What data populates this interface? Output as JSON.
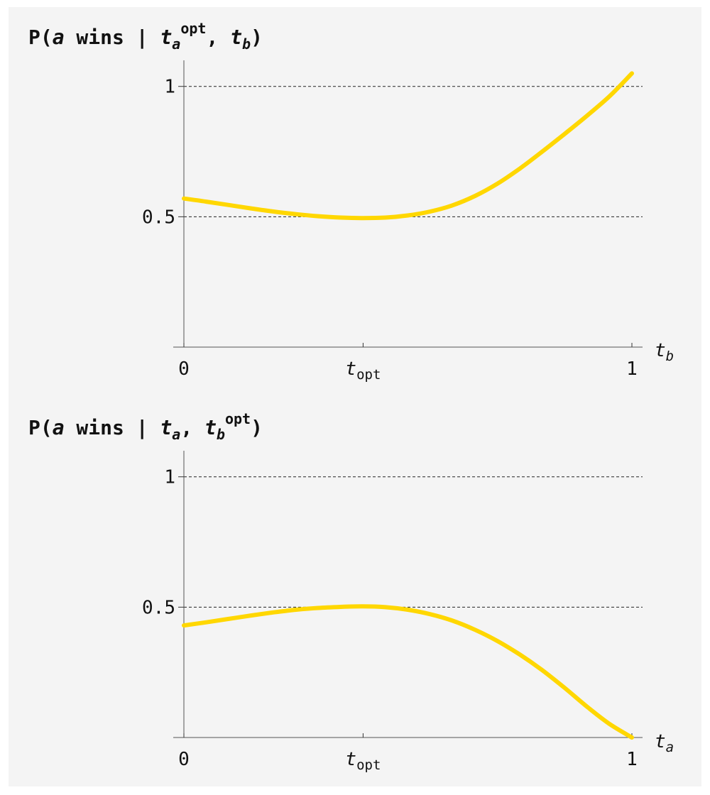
{
  "chart_data": [
    {
      "type": "line",
      "title": {
        "prefix": "P(",
        "var": "a",
        "text": " wins | ",
        "arg1_base": "t",
        "arg1_sub": "a",
        "arg1_sup": "opt",
        "sep": ", ",
        "arg2_base": "t",
        "arg2_sub": "b",
        "arg2_sup": "",
        "suffix": ")"
      },
      "xlabel": {
        "base": "t",
        "sub": "b"
      },
      "xticks": [
        {
          "value": 0,
          "base": "0",
          "sub": ""
        },
        {
          "value": 0.4,
          "base": "t",
          "sub": "opt"
        },
        {
          "value": 1,
          "base": "1",
          "sub": ""
        }
      ],
      "yticks": [
        {
          "value": 0.5,
          "label": "0.5"
        },
        {
          "value": 1,
          "label": "1"
        }
      ],
      "gridlines_y": [
        0.5,
        1
      ],
      "xlim": [
        0,
        1
      ],
      "ylim": [
        0,
        1.1
      ],
      "series": [
        {
          "color": "#FFD700",
          "x": [
            0,
            0.05,
            0.1,
            0.15,
            0.2,
            0.25,
            0.3,
            0.35,
            0.4,
            0.45,
            0.5,
            0.55,
            0.6,
            0.65,
            0.7,
            0.75,
            0.8,
            0.85,
            0.9,
            0.95,
            1.0
          ],
          "y": [
            0.57,
            0.558,
            0.545,
            0.532,
            0.52,
            0.51,
            0.502,
            0.497,
            0.495,
            0.497,
            0.505,
            0.52,
            0.544,
            0.58,
            0.627,
            0.685,
            0.75,
            0.818,
            0.888,
            0.962,
            1.05
          ]
        }
      ]
    },
    {
      "type": "line",
      "title": {
        "prefix": "P(",
        "var": "a",
        "text": " wins | ",
        "arg1_base": "t",
        "arg1_sub": "a",
        "arg1_sup": "",
        "sep": ", ",
        "arg2_base": "t",
        "arg2_sub": "b",
        "arg2_sup": "opt",
        "suffix": ")"
      },
      "xlabel": {
        "base": "t",
        "sub": "a"
      },
      "xticks": [
        {
          "value": 0,
          "base": "0",
          "sub": ""
        },
        {
          "value": 0.4,
          "base": "t",
          "sub": "opt"
        },
        {
          "value": 1,
          "base": "1",
          "sub": ""
        }
      ],
      "yticks": [
        {
          "value": 0.5,
          "label": "0.5"
        },
        {
          "value": 1,
          "label": "1"
        }
      ],
      "gridlines_y": [
        0.5,
        1
      ],
      "xlim": [
        0,
        1
      ],
      "ylim": [
        0,
        1.1
      ],
      "series": [
        {
          "color": "#FFD700",
          "x": [
            0,
            0.05,
            0.1,
            0.15,
            0.2,
            0.25,
            0.3,
            0.35,
            0.4,
            0.45,
            0.5,
            0.55,
            0.6,
            0.65,
            0.7,
            0.75,
            0.8,
            0.85,
            0.9,
            0.95,
            1.0
          ],
          "y": [
            0.43,
            0.442,
            0.455,
            0.468,
            0.48,
            0.49,
            0.497,
            0.501,
            0.503,
            0.5,
            0.49,
            0.473,
            0.448,
            0.413,
            0.37,
            0.318,
            0.258,
            0.19,
            0.118,
            0.052,
            0.0
          ]
        }
      ]
    }
  ]
}
